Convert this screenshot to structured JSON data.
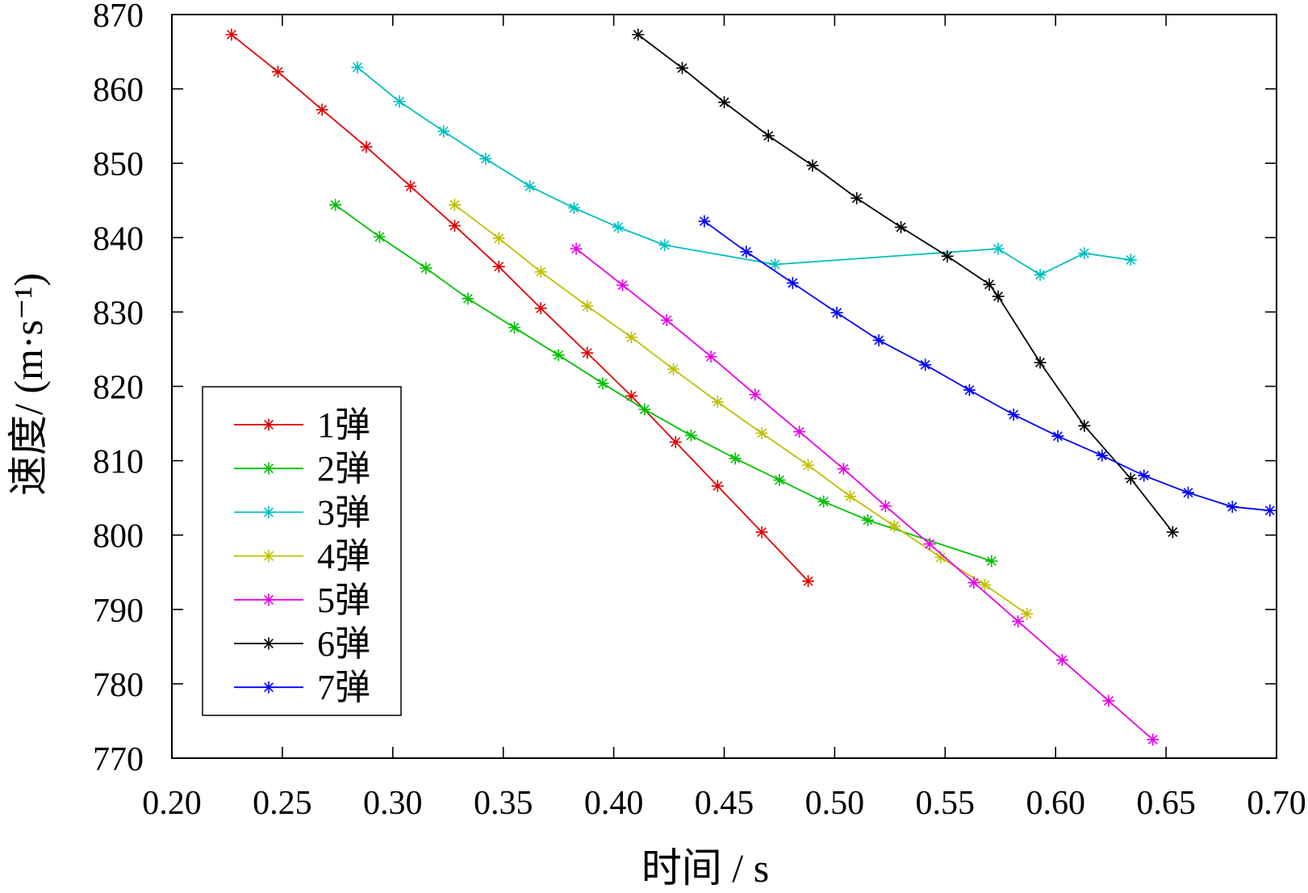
{
  "chart_data": {
    "type": "line",
    "xlabel": "时间 / s",
    "ylabel": "速度/ (m·s⁻¹)",
    "xlim": [
      0.2,
      0.7
    ],
    "ylim": [
      770,
      870
    ],
    "x_ticks": [
      "0.20",
      "0.25",
      "0.30",
      "0.35",
      "0.40",
      "0.45",
      "0.50",
      "0.55",
      "0.60",
      "0.65",
      "0.70"
    ],
    "y_ticks": [
      "770",
      "780",
      "790",
      "800",
      "810",
      "820",
      "830",
      "840",
      "850",
      "860",
      "870"
    ],
    "grid": false,
    "legend_position": "lower-left",
    "marker": "asterisk",
    "series": [
      {
        "name": "1弹",
        "color": "#e00000",
        "x": [
          0.227,
          0.248,
          0.268,
          0.288,
          0.308,
          0.328,
          0.348,
          0.367,
          0.388,
          0.408,
          0.428,
          0.447,
          0.467,
          0.488
        ],
        "y": [
          867.3,
          862.3,
          857.2,
          852.2,
          846.9,
          841.6,
          836.1,
          830.5,
          824.5,
          818.7,
          812.5,
          806.6,
          800.4,
          793.8
        ]
      },
      {
        "name": "2弹",
        "color": "#00c000",
        "x": [
          0.274,
          0.294,
          0.315,
          0.334,
          0.355,
          0.375,
          0.395,
          0.414,
          0.435,
          0.455,
          0.475,
          0.495,
          0.515,
          0.571
        ],
        "y": [
          844.4,
          840.1,
          835.9,
          831.8,
          827.9,
          824.2,
          820.4,
          816.9,
          813.4,
          810.3,
          807.4,
          804.5,
          802.0,
          796.5
        ]
      },
      {
        "name": "3弹",
        "color": "#00bfbf",
        "x": [
          0.284,
          0.303,
          0.323,
          0.342,
          0.362,
          0.382,
          0.402,
          0.423,
          0.473,
          0.574,
          0.593,
          0.613,
          0.634
        ],
        "y": [
          862.9,
          858.3,
          854.3,
          850.6,
          846.9,
          844.0,
          841.4,
          839.0,
          836.4,
          838.5,
          835.0,
          837.9,
          837.0
        ]
      },
      {
        "name": "4弹",
        "color": "#bfbf00",
        "x": [
          0.328,
          0.348,
          0.367,
          0.388,
          0.408,
          0.427,
          0.447,
          0.467,
          0.488,
          0.507,
          0.527,
          0.548,
          0.568,
          0.587
        ],
        "y": [
          844.4,
          839.9,
          835.4,
          830.8,
          826.6,
          822.3,
          817.9,
          813.7,
          809.4,
          805.2,
          801.2,
          797.0,
          793.3,
          789.4
        ]
      },
      {
        "name": "5弹",
        "color": "#e600e6",
        "x": [
          0.383,
          0.404,
          0.424,
          0.444,
          0.464,
          0.484,
          0.504,
          0.523,
          0.543,
          0.563,
          0.583,
          0.603,
          0.624,
          0.644
        ],
        "y": [
          838.5,
          833.6,
          828.9,
          824.0,
          818.9,
          813.9,
          808.9,
          803.9,
          798.8,
          793.6,
          788.4,
          783.2,
          777.7,
          772.5
        ]
      },
      {
        "name": "6弹",
        "color": "#000000",
        "x": [
          0.411,
          0.431,
          0.45,
          0.47,
          0.49,
          0.51,
          0.53,
          0.551,
          0.57,
          0.574,
          0.593,
          0.613,
          0.634,
          0.653
        ],
        "y": [
          867.3,
          862.8,
          858.2,
          853.7,
          849.7,
          845.3,
          841.4,
          837.5,
          833.7,
          832.1,
          823.2,
          814.7,
          807.6,
          800.4
        ]
      },
      {
        "name": "7弹",
        "color": "#0000ff",
        "x": [
          0.441,
          0.46,
          0.481,
          0.501,
          0.52,
          0.541,
          0.561,
          0.581,
          0.601,
          0.621,
          0.64,
          0.66,
          0.68,
          0.697
        ],
        "y": [
          842.2,
          838.1,
          833.9,
          829.9,
          826.2,
          822.9,
          819.5,
          816.2,
          813.3,
          810.7,
          808.0,
          805.7,
          803.8,
          803.3
        ]
      }
    ]
  }
}
